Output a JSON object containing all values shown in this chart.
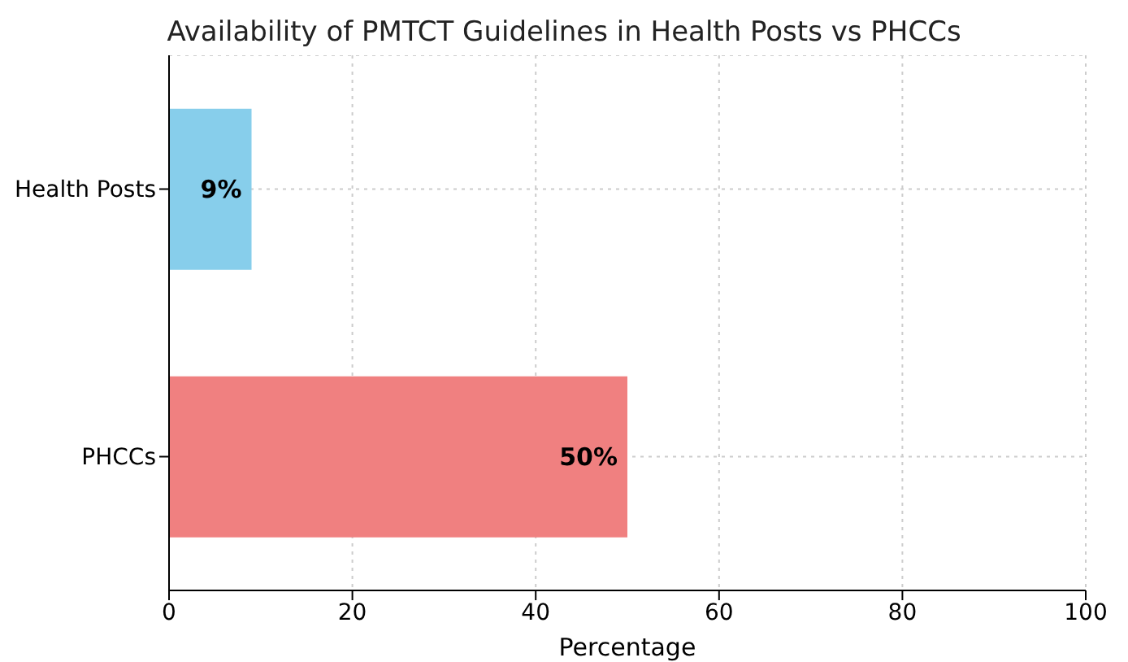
{
  "chart_data": {
    "type": "bar",
    "orientation": "horizontal",
    "title": "Availability of PMTCT Guidelines in Health Posts vs PHCCs",
    "xlabel": "Percentage",
    "categories": [
      "Health Posts",
      "PHCCs"
    ],
    "values": [
      9,
      50
    ],
    "colors": [
      "#87ceeb",
      "#f08080"
    ],
    "value_labels": [
      "9%",
      "50%"
    ],
    "xlim": [
      0,
      100
    ],
    "xticks": [
      0,
      20,
      40,
      60,
      80,
      100
    ],
    "grid": true
  }
}
